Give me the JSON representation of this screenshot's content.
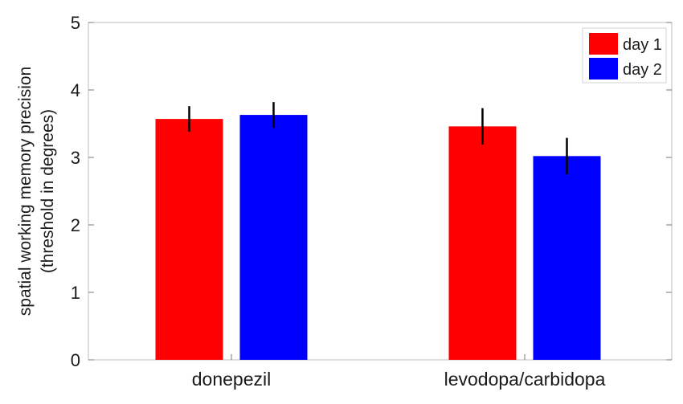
{
  "chart_data": {
    "type": "bar",
    "title": "",
    "xlabel": "",
    "ylabel_line1": "spatial working memory precision",
    "ylabel_line2": "(threshold in degrees)",
    "ylim": [
      0,
      5
    ],
    "yticks": [
      0,
      1,
      2,
      3,
      4,
      5
    ],
    "categories": [
      "donepezil",
      "levodopa/carbidopa"
    ],
    "series": [
      {
        "name": "day 1",
        "color": "#ff0000",
        "values": [
          3.57,
          3.46
        ],
        "errors": [
          0.19,
          0.27
        ]
      },
      {
        "name": "day 2",
        "color": "#0000ff",
        "values": [
          3.63,
          3.02
        ],
        "errors": [
          0.19,
          0.27
        ]
      }
    ],
    "legend_position": "top-right",
    "grid": false
  }
}
